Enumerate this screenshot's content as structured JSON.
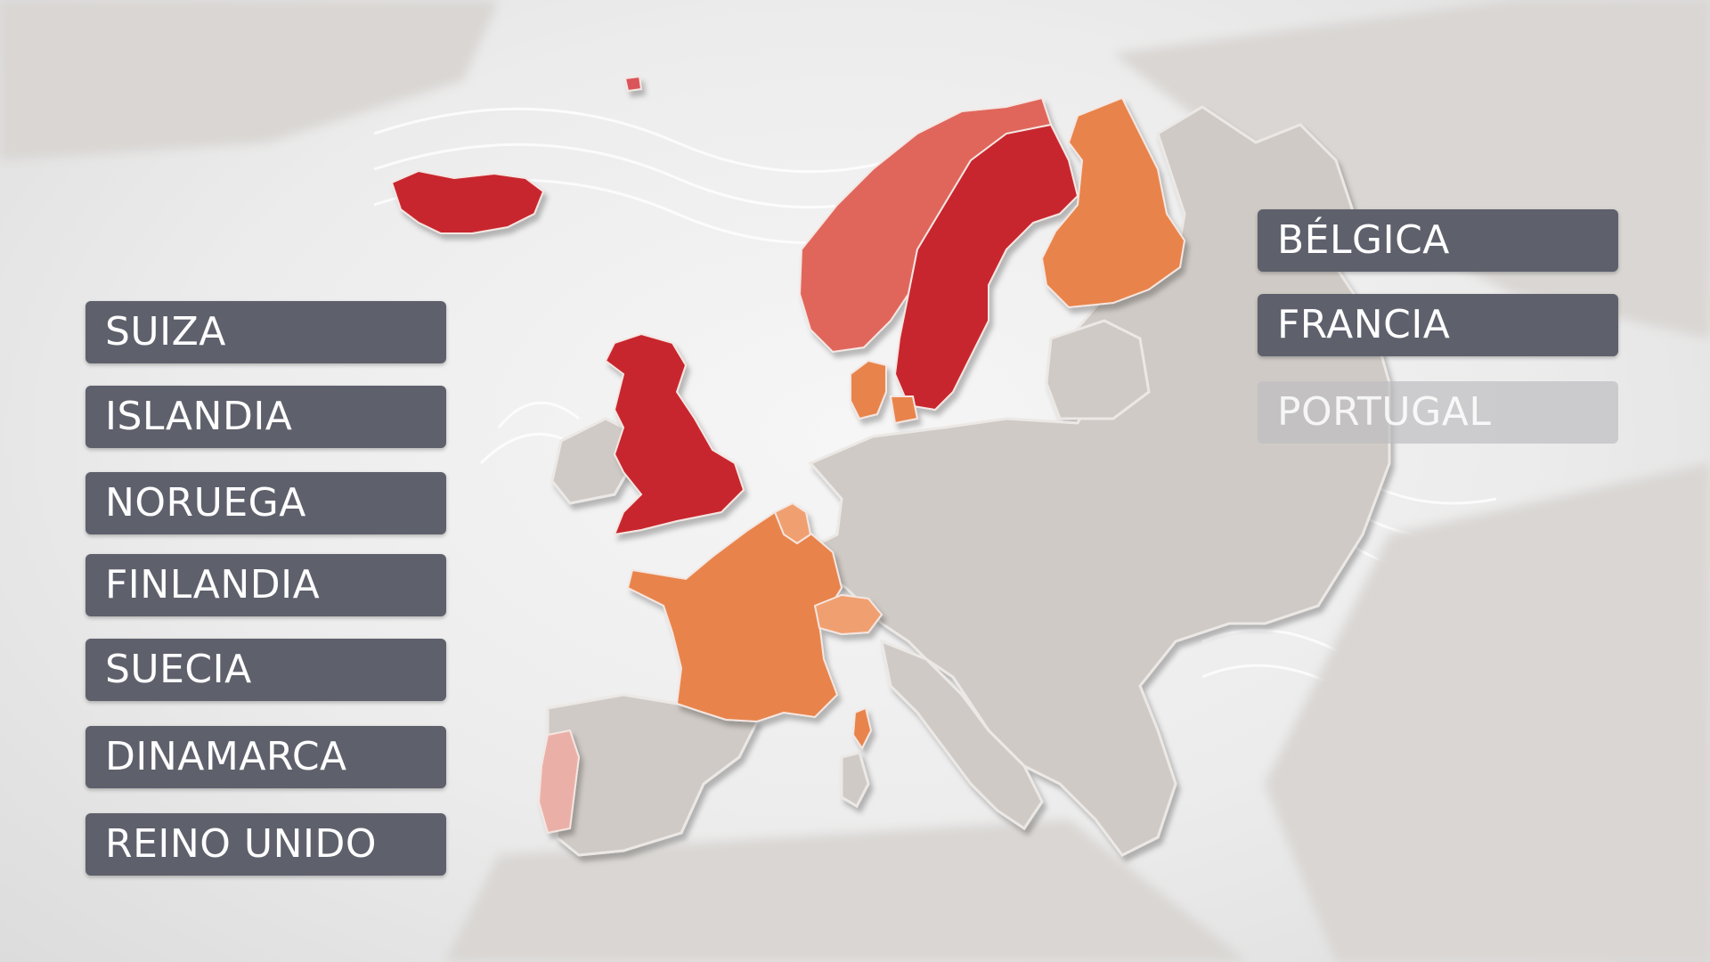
{
  "left_labels": [
    "SUIZA",
    "ISLANDIA",
    "NORUEGA",
    "FINLANDIA",
    "SUECIA",
    "DINAMARCA",
    "REINO UNIDO"
  ],
  "right_labels": [
    "BÉLGICA",
    "FRANCIA",
    "PORTUGAL"
  ],
  "colors": {
    "label_bg": "#5e606c",
    "label_dim_bg": "#c8c8ca",
    "dark_red": "#c8262e",
    "light_red": "#e0665c",
    "orange": "#e8844c",
    "light_orange": "#f0a070",
    "pale_pink": "#eab0a8",
    "land_gray": "#cfcac5",
    "sea": "#f2f2f2"
  },
  "highlighted_countries": {
    "iceland": "dark_red",
    "united_kingdom": "dark_red",
    "sweden": "dark_red",
    "norway": "light_red",
    "finland": "orange",
    "denmark": "orange",
    "france": "orange",
    "belgium": "light_orange",
    "switzerland": "light_orange",
    "portugal": "pale_pink"
  }
}
